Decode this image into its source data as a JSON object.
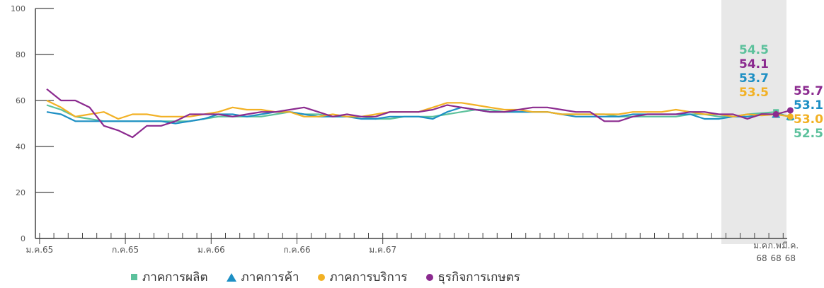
{
  "chart_data": {
    "type": "line",
    "ylim": [
      0,
      100
    ],
    "yticks": [
      "0",
      "20",
      "40",
      "60",
      "80",
      "100"
    ],
    "xtick_labels": [
      "ม.ค.65",
      "ก.ค.65",
      "ม.ค.66",
      "ก.ค.66",
      "ม.ค.67"
    ],
    "recent_tick_labels": [
      {
        "line1": "ม.ค.",
        "line2": "68"
      },
      {
        "line1": "ก.พ.",
        "line2": "68"
      },
      {
        "line1": "มี.ค.",
        "line2": "68"
      }
    ],
    "series": [
      {
        "name": "ภาคการผลิต",
        "color": "#5cc19c",
        "marker": "square",
        "values": [
          58,
          56,
          53,
          52,
          51,
          51,
          51,
          51,
          51,
          51,
          51,
          52,
          53,
          53,
          53,
          53,
          54,
          55,
          54,
          54,
          53,
          53,
          53,
          52,
          52,
          53,
          53,
          53,
          54,
          55,
          56,
          56,
          55,
          55,
          55,
          55,
          54,
          54,
          54,
          54,
          53,
          53,
          53,
          53,
          53,
          54,
          54,
          53,
          53,
          54,
          54.5,
          55,
          52.5
        ],
        "end_labels": [
          "54.5",
          "52.5"
        ]
      },
      {
        "name": "ภาคการค้า",
        "color": "#1d8fc4",
        "marker": "triangle",
        "values": [
          55,
          54,
          51,
          51,
          51,
          51,
          51,
          51,
          51,
          50,
          51,
          52,
          54,
          54,
          53,
          54,
          55,
          55,
          54,
          53,
          53,
          53,
          52,
          52,
          53,
          53,
          53,
          52,
          55,
          57,
          56,
          55,
          55,
          55,
          55,
          55,
          54,
          53,
          53,
          53,
          53,
          54,
          54,
          54,
          54,
          54,
          52,
          52,
          53,
          53,
          53.7,
          54,
          53.1
        ],
        "end_labels": [
          "53.7",
          "53.1"
        ]
      },
      {
        "name": "ภาคการบริการ",
        "color": "#f2b124",
        "marker": "circle",
        "values": [
          60,
          57,
          53,
          54,
          55,
          52,
          54,
          54,
          53,
          53,
          53,
          54,
          55,
          57,
          56,
          56,
          55,
          55,
          53,
          53,
          54,
          53,
          53,
          54,
          55,
          55,
          55,
          57,
          59,
          59,
          58,
          57,
          56,
          56,
          55,
          55,
          54,
          54,
          54,
          54,
          54,
          55,
          55,
          55,
          56,
          55,
          54,
          54,
          53,
          54,
          53.5,
          54,
          53.0
        ],
        "end_labels": [
          "53.5",
          "53.0"
        ]
      },
      {
        "name": "ธุรกิจการเกษตร",
        "color": "#8b2a8f",
        "marker": "circle",
        "values": [
          65,
          60,
          60,
          57,
          49,
          47,
          44,
          49,
          49,
          51,
          54,
          54,
          54,
          53,
          54,
          55,
          55,
          56,
          57,
          55,
          53,
          54,
          53,
          53,
          55,
          55,
          55,
          56,
          58,
          57,
          56,
          55,
          55,
          56,
          57,
          57,
          56,
          55,
          55,
          51,
          51,
          53,
          54,
          54,
          54,
          55,
          55,
          54,
          54,
          52,
          54.1,
          54,
          55.7
        ],
        "end_labels": [
          "54.1",
          "55.7"
        ]
      }
    ]
  }
}
